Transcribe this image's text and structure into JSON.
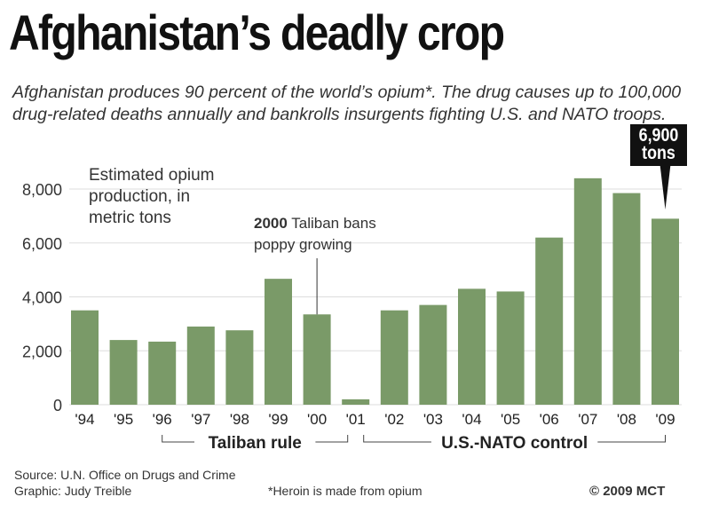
{
  "title": "Afghanistan’s deadly crop",
  "subtitle": "Afghanistan produces 90 percent of the world’s opium*. The drug causes up to 100,000 drug-related deaths annually and bankrolls insurgents fighting U.S. and NATO troops.",
  "chart_data": {
    "type": "bar",
    "ylabel": "Estimated opium production, in metric tons",
    "categories": [
      "'94",
      "'95",
      "'96",
      "'97",
      "'98",
      "'99",
      "'00",
      "'01",
      "'02",
      "'03",
      "'04",
      "'05",
      "'06",
      "'07",
      "'08",
      "'09"
    ],
    "values": [
      3500,
      2400,
      2340,
      2900,
      2760,
      4670,
      3350,
      200,
      3500,
      3700,
      4300,
      4200,
      6200,
      8400,
      7850,
      6900
    ],
    "ylim": [
      0,
      8000
    ],
    "yticks": [
      "0",
      "2,000",
      "4,000",
      "6,000",
      "8,000"
    ],
    "ytick_values": [
      0,
      2000,
      4000,
      6000,
      8000
    ],
    "grid": true,
    "bar_color": "#7a9a68",
    "annotations": {
      "ban_year": "2000",
      "ban_text": "Taliban bans",
      "ban_text2": "poppy growing",
      "callout_value": "6,900",
      "callout_unit": "tons"
    },
    "periods": [
      {
        "label": "Taliban rule",
        "from": "'96",
        "to": "'01"
      },
      {
        "label": "U.S.-NATO control",
        "from": "'01",
        "to": "'09"
      }
    ]
  },
  "footer": {
    "source": "Source: U.N. Office on Drugs and Crime",
    "graphic": "Graphic: Judy Treible",
    "footnote": "*Heroin is made from opium",
    "copyright": "© 2009 MCT"
  }
}
